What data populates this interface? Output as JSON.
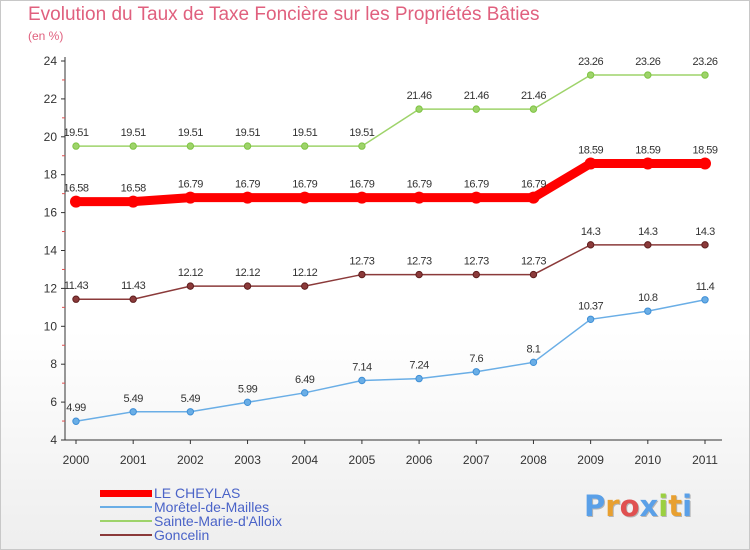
{
  "header": {
    "title": "Evolution du Taux de Taxe Foncière sur les Propriétés Bâties",
    "unit": "(en %)"
  },
  "logo": {
    "letters": [
      "P",
      "r",
      "o",
      "x",
      "i",
      "t",
      "i"
    ],
    "colors": [
      "#5aa0e8",
      "#e8a030",
      "#e05050",
      "#5aa0e8",
      "#9bd040",
      "#e8a030",
      "#5aa0e8"
    ]
  },
  "chart_data": {
    "type": "line",
    "title": "Evolution du Taux de Taxe Foncière sur les Propriétés Bâties",
    "ylabel": "(en %)",
    "xlabel": "",
    "x": [
      "2000",
      "2001",
      "2002",
      "2003",
      "2004",
      "2005",
      "2006",
      "2007",
      "2008",
      "2009",
      "2010",
      "2011"
    ],
    "ylim": [
      4,
      24
    ],
    "yticks": [
      4,
      6,
      8,
      10,
      12,
      14,
      16,
      18,
      20,
      22,
      24
    ],
    "grid": false,
    "legend_position": "bottom",
    "series": [
      {
        "name": "LE CHEYLAS",
        "color": "#ff0000",
        "emphasis": true,
        "values": [
          16.58,
          16.58,
          16.79,
          16.79,
          16.79,
          16.79,
          16.79,
          16.79,
          16.79,
          18.59,
          18.59,
          18.59
        ],
        "labels": [
          "16.58",
          "16.58",
          "16.79",
          "16.79",
          "16.79",
          "16.79",
          "16.79",
          "16.79",
          "16.79",
          "18.59",
          "18.59",
          "18.59"
        ]
      },
      {
        "name": "Morêtel-de-Mailles",
        "color": "#6aaee6",
        "marker": "#3f8fd6",
        "values": [
          4.99,
          5.49,
          5.49,
          5.99,
          6.49,
          7.14,
          7.24,
          7.6,
          8.1,
          10.37,
          10.8,
          11.4
        ],
        "labels": [
          "4.99",
          "5.49",
          "5.49",
          "5.99",
          "6.49",
          "7.14",
          "7.24",
          "7.6",
          "8.1",
          "10.37",
          "10.8",
          "11.4"
        ]
      },
      {
        "name": "Sainte-Marie-d'Alloix",
        "color": "#9ed36a",
        "marker": "#7ec443",
        "values": [
          19.51,
          19.51,
          19.51,
          19.51,
          19.51,
          19.51,
          21.46,
          21.46,
          21.46,
          23.26,
          23.26,
          23.26
        ],
        "labels": [
          "19.51",
          "19.51",
          "19.51",
          "19.51",
          "19.51",
          "19.51",
          "21.46",
          "21.46",
          "21.46",
          "23.26",
          "23.26",
          "23.26"
        ]
      },
      {
        "name": "Goncelin",
        "color": "#8b3a3a",
        "marker": "#5e1e1e",
        "values": [
          11.43,
          11.43,
          12.12,
          12.12,
          12.12,
          12.73,
          12.73,
          12.73,
          12.73,
          14.3,
          14.3,
          14.3
        ],
        "labels": [
          "11.43",
          "11.43",
          "12.12",
          "12.12",
          "12.12",
          "12.73",
          "12.73",
          "12.73",
          "12.73",
          "14.3",
          "14.3",
          "14.3"
        ]
      }
    ]
  }
}
